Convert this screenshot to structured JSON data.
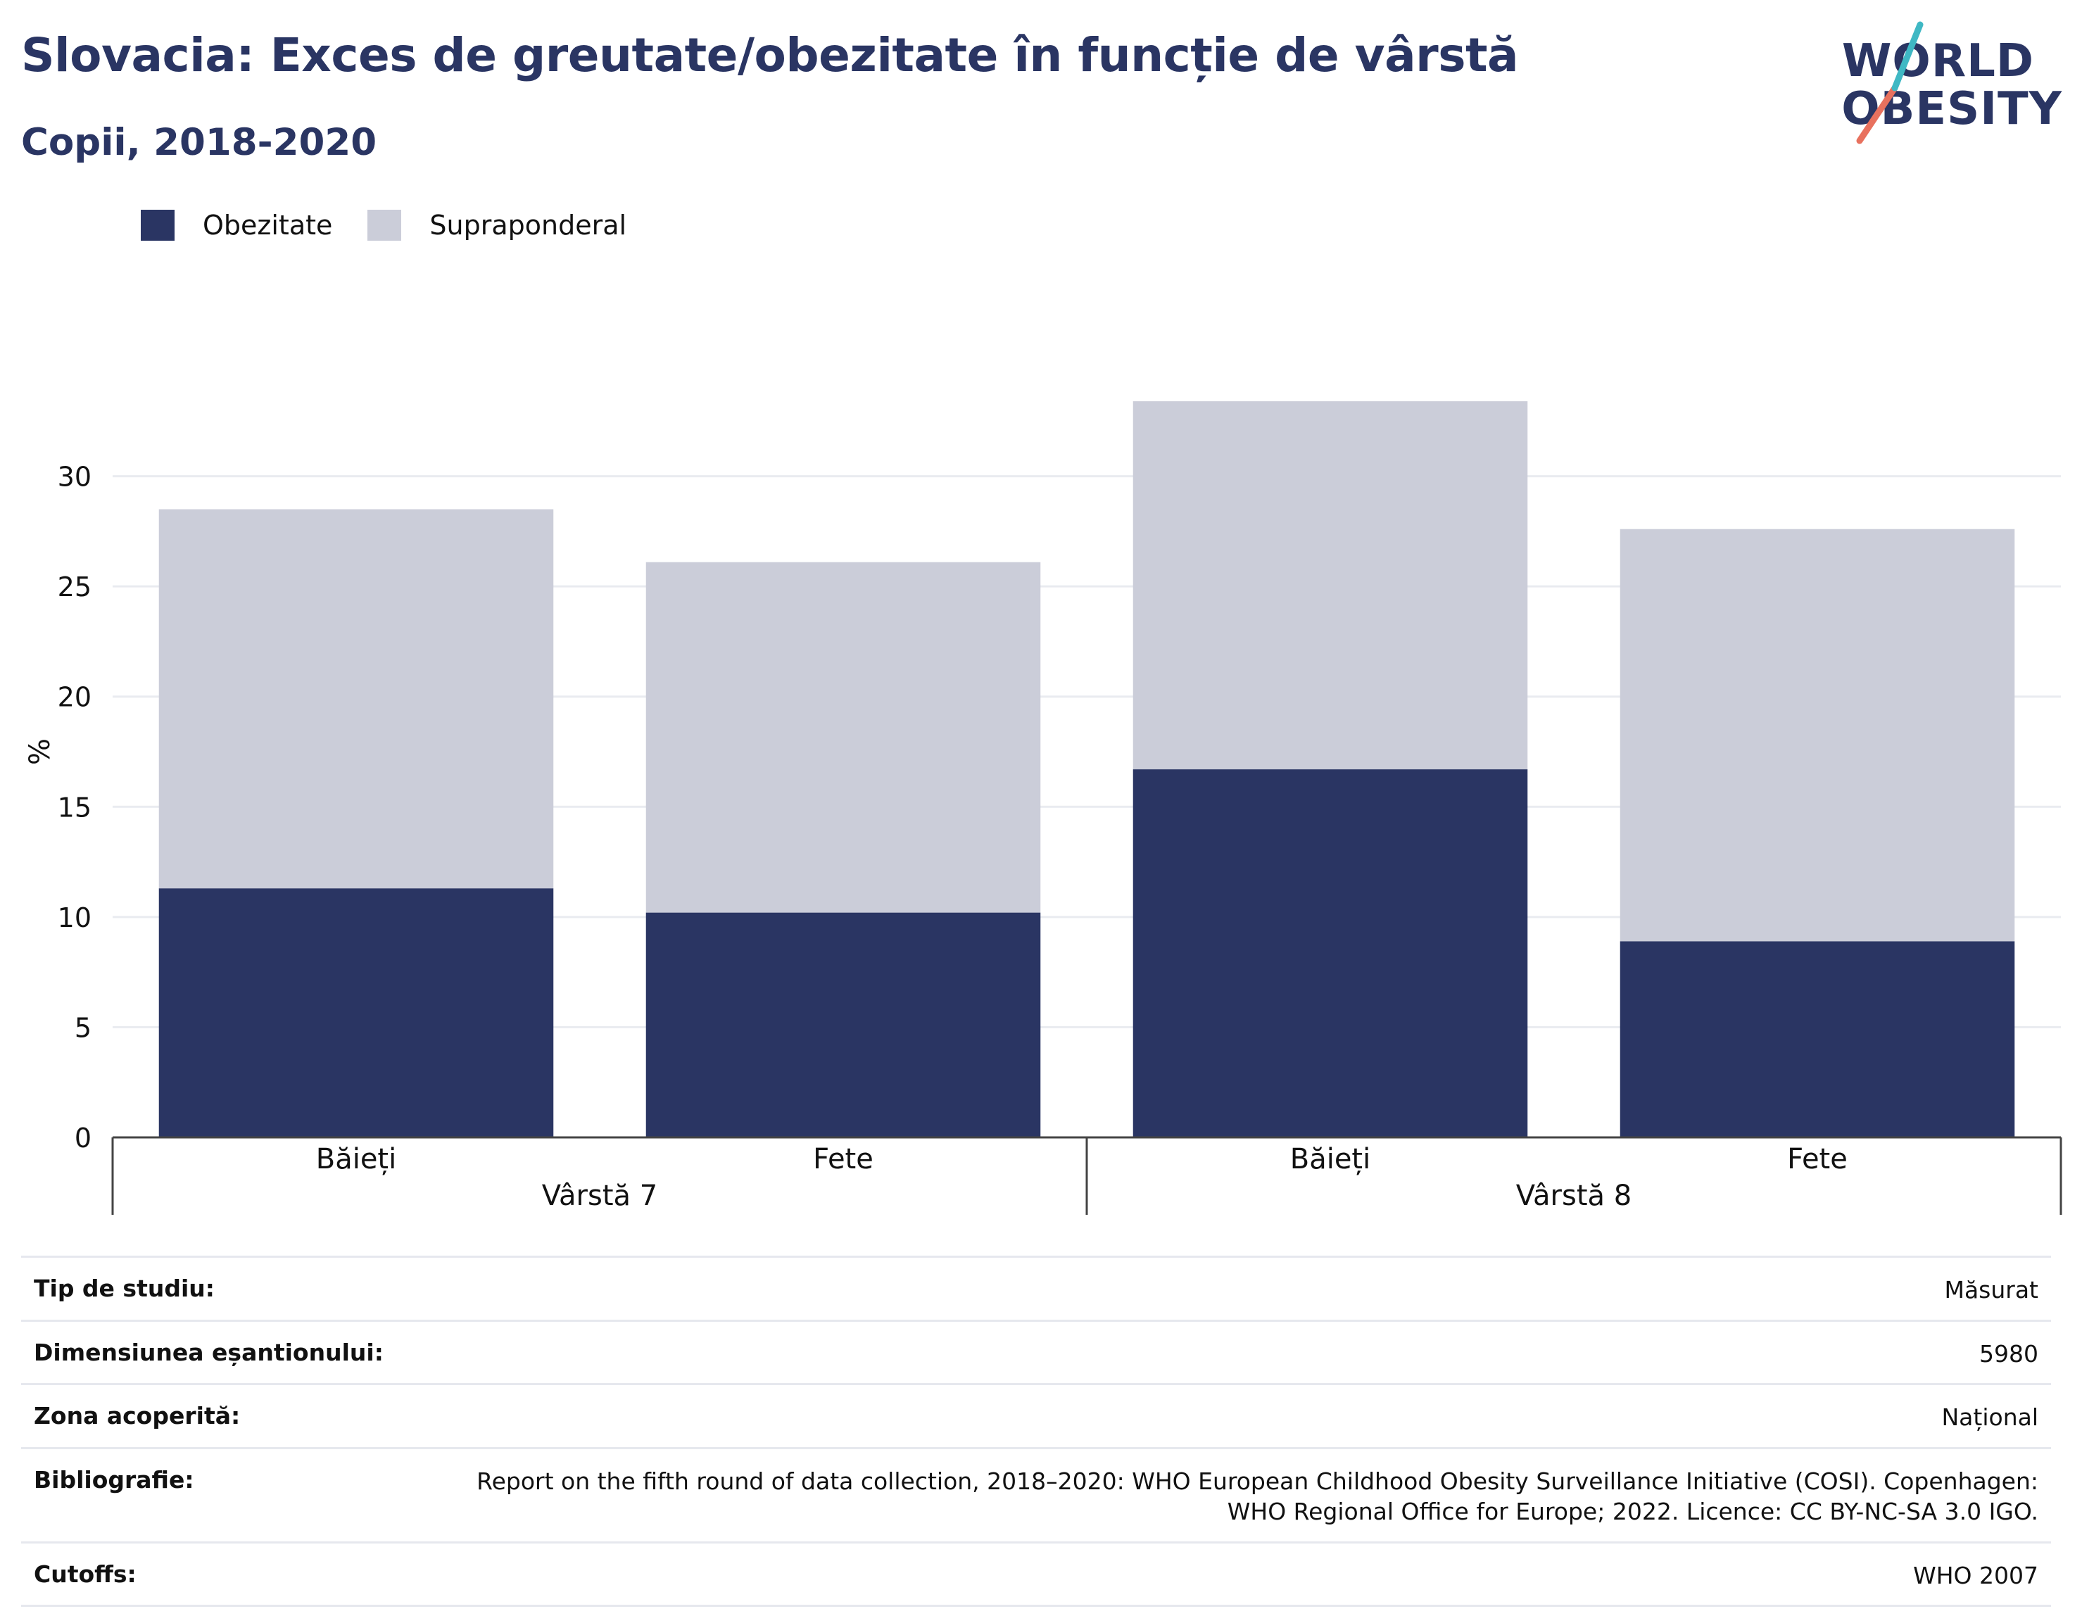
{
  "header": {
    "title": "Slovacia: Exces de greutate/obezitate în funcție de vârstă",
    "subtitle": "Copii, 2018-2020"
  },
  "logo": {
    "line1": "WORLD",
    "line2": "OBESITY",
    "accent_teal": "#3fb8c4",
    "accent_coral": "#e8715e"
  },
  "colors": {
    "obesity": "#2a3563",
    "overweight": "#cbcdd9",
    "grid": "#e9ebf0",
    "axis": "#444444"
  },
  "chart_data": {
    "type": "bar",
    "stacked": true,
    "ylabel": "%",
    "ylim": [
      0,
      35
    ],
    "yticks": [
      0,
      5,
      10,
      15,
      20,
      25,
      30
    ],
    "grid": true,
    "legend_position": "top-left",
    "groups": [
      {
        "label": "Vârstă 7",
        "categories": [
          "Băieți",
          "Fete"
        ]
      },
      {
        "label": "Vârstă 8",
        "categories": [
          "Băieți",
          "Fete"
        ]
      }
    ],
    "categories": [
      "Băieți",
      "Fete",
      "Băieți",
      "Fete"
    ],
    "series": [
      {
        "name": "Obezitate",
        "values": [
          11.3,
          10.2,
          16.7,
          8.9
        ]
      },
      {
        "name": "Supraponderal",
        "values": [
          17.2,
          15.9,
          16.7,
          18.7
        ]
      }
    ]
  },
  "info": [
    {
      "label": "Tip de studiu:",
      "value": "Măsurat"
    },
    {
      "label": "Dimensiunea eșantionului:",
      "value": "5980"
    },
    {
      "label": "Zona acoperită:",
      "value": "Național"
    },
    {
      "label": "Bibliografie:",
      "value": "Report on the fifth round of data collection, 2018–2020: WHO European Childhood Obesity Surveillance Initiative (COSI). Copenhagen: WHO Regional Office for Europe; 2022. Licence: CC BY-NC-SA 3.0 IGO."
    },
    {
      "label": "Cutoffs:",
      "value": "WHO 2007"
    }
  ]
}
